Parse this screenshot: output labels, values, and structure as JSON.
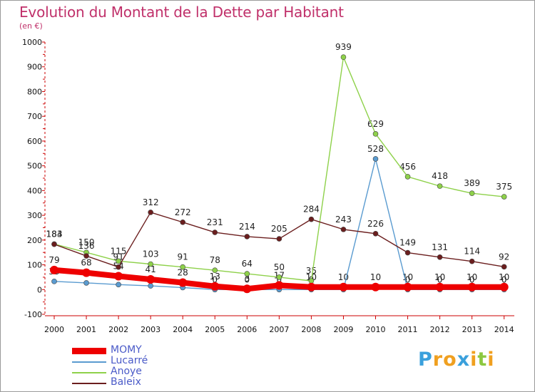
{
  "title": "Evolution du Montant de la Dette par Habitant",
  "subtitle": "(en €)",
  "brand": {
    "letters": [
      "P",
      "r",
      "o",
      "x",
      "i",
      "t",
      "i"
    ],
    "colors": [
      "#3aa0dc",
      "#f0a020",
      "#f0a020",
      "#3aa0dc",
      "#f0a020",
      "#8cc840",
      "#f0a020"
    ]
  },
  "chart_data": {
    "type": "line",
    "x": [
      "2000",
      "2001",
      "2002",
      "2003",
      "2004",
      "2005",
      "2006",
      "2007",
      "2008",
      "2009",
      "2010",
      "2011",
      "2012",
      "2013",
      "2014"
    ],
    "y_ticks": [
      "-100",
      "0",
      "100",
      "200",
      "300",
      "400",
      "500",
      "600",
      "700",
      "800",
      "900",
      "1000"
    ],
    "ylim": [
      -100,
      1000
    ],
    "grid": false,
    "legend_position": "bottom-left",
    "series": [
      {
        "name": "MOMY",
        "color": "#ee0000",
        "weight": "bold",
        "values": [
          79,
          68,
          54,
          41,
          28,
          13,
          3,
          17,
          10,
          10,
          10,
          10,
          10,
          10,
          10
        ],
        "labels": [
          "79",
          "68",
          "54",
          "41",
          "28",
          "13",
          "3",
          "17",
          "10",
          "10",
          "10",
          "10",
          "10",
          "10",
          "10"
        ]
      },
      {
        "name": "Lucarré",
        "color": "#5a9bd0",
        "weight": "thin",
        "values": [
          33,
          27,
          20,
          15,
          8,
          0,
          0,
          0,
          0,
          0,
          528,
          0,
          0,
          0,
          0
        ],
        "labels": [
          "33",
          "",
          "",
          "",
          "",
          "0",
          "0",
          "0",
          "0",
          "",
          "528",
          "0",
          "0",
          "0",
          "0"
        ]
      },
      {
        "name": "Anoye",
        "color": "#8ed14a",
        "weight": "thin",
        "values": [
          184,
          150,
          115,
          103,
          91,
          78,
          64,
          50,
          35,
          939,
          629,
          456,
          418,
          389,
          375
        ],
        "labels": [
          "184",
          "150",
          "115",
          "103",
          "91",
          "78",
          "64",
          "50",
          "35",
          "939",
          "629",
          "456",
          "418",
          "389",
          "375"
        ]
      },
      {
        "name": "Baleix",
        "color": "#6b1e1e",
        "weight": "thin",
        "values": [
          183,
          136,
          91,
          312,
          272,
          231,
          214,
          205,
          284,
          243,
          226,
          149,
          131,
          114,
          92
        ],
        "labels": [
          "183",
          "136",
          "91",
          "312",
          "272",
          "231",
          "214",
          "205",
          "284",
          "243",
          "226",
          "149",
          "131",
          "114",
          "92"
        ]
      }
    ]
  }
}
